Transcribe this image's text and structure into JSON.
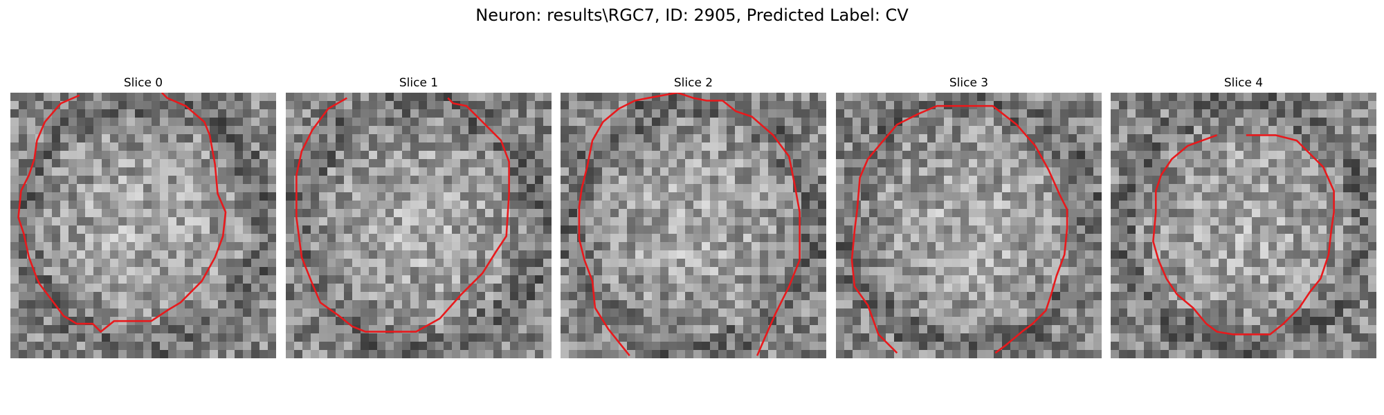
{
  "figure": {
    "title": "Neuron: results\\RGC7, ID: 2905, Predicted Label: CV"
  },
  "contour_color": "#e8191c",
  "panels": [
    {
      "label": "Slice 0",
      "seed": 11,
      "contour": [
        [
          0.26,
          0.01
        ],
        [
          0.19,
          0.04
        ],
        [
          0.13,
          0.11
        ],
        [
          0.1,
          0.18
        ],
        [
          0.09,
          0.25
        ],
        [
          0.07,
          0.31
        ],
        [
          0.04,
          0.37
        ],
        [
          0.03,
          0.47
        ],
        [
          0.05,
          0.53
        ],
        [
          0.07,
          0.62
        ],
        [
          0.1,
          0.7
        ],
        [
          0.11,
          0.72
        ],
        [
          0.17,
          0.8
        ],
        [
          0.2,
          0.84
        ],
        [
          0.25,
          0.87
        ],
        [
          0.31,
          0.87
        ],
        [
          0.34,
          0.9
        ],
        [
          0.39,
          0.86
        ],
        [
          0.53,
          0.86
        ],
        [
          0.59,
          0.82
        ],
        [
          0.64,
          0.79
        ],
        [
          0.72,
          0.71
        ],
        [
          0.77,
          0.62
        ],
        [
          0.8,
          0.54
        ],
        [
          0.81,
          0.45
        ],
        [
          0.78,
          0.38
        ],
        [
          0.77,
          0.27
        ],
        [
          0.75,
          0.16
        ],
        [
          0.73,
          0.11
        ],
        [
          0.66,
          0.05
        ],
        [
          0.59,
          0.02
        ],
        [
          0.57,
          0.0
        ]
      ]
    },
    {
      "label": "Slice 1",
      "seed": 23,
      "contour": [
        [
          0.23,
          0.02
        ],
        [
          0.16,
          0.06
        ],
        [
          0.1,
          0.14
        ],
        [
          0.06,
          0.22
        ],
        [
          0.04,
          0.31
        ],
        [
          0.04,
          0.47
        ],
        [
          0.06,
          0.62
        ],
        [
          0.1,
          0.72
        ],
        [
          0.13,
          0.79
        ],
        [
          0.2,
          0.84
        ],
        [
          0.25,
          0.88
        ],
        [
          0.3,
          0.9
        ],
        [
          0.49,
          0.9
        ],
        [
          0.58,
          0.85
        ],
        [
          0.66,
          0.76
        ],
        [
          0.74,
          0.68
        ],
        [
          0.79,
          0.6
        ],
        [
          0.83,
          0.54
        ],
        [
          0.84,
          0.38
        ],
        [
          0.84,
          0.26
        ],
        [
          0.81,
          0.18
        ],
        [
          0.74,
          0.11
        ],
        [
          0.68,
          0.05
        ],
        [
          0.63,
          0.04
        ],
        [
          0.61,
          0.02
        ]
      ]
    },
    {
      "label": "Slice 2",
      "seed": 37,
      "contour": [
        [
          0.26,
          0.99
        ],
        [
          0.18,
          0.89
        ],
        [
          0.13,
          0.81
        ],
        [
          0.12,
          0.71
        ],
        [
          0.09,
          0.63
        ],
        [
          0.07,
          0.55
        ],
        [
          0.07,
          0.43
        ],
        [
          0.08,
          0.36
        ],
        [
          0.1,
          0.28
        ],
        [
          0.12,
          0.18
        ],
        [
          0.16,
          0.11
        ],
        [
          0.22,
          0.06
        ],
        [
          0.28,
          0.03
        ],
        [
          0.33,
          0.02
        ],
        [
          0.44,
          0.0
        ],
        [
          0.5,
          0.02
        ],
        [
          0.55,
          0.03
        ],
        [
          0.61,
          0.03
        ],
        [
          0.66,
          0.07
        ],
        [
          0.72,
          0.09
        ],
        [
          0.8,
          0.16
        ],
        [
          0.86,
          0.24
        ],
        [
          0.88,
          0.34
        ],
        [
          0.9,
          0.45
        ],
        [
          0.9,
          0.63
        ],
        [
          0.86,
          0.73
        ],
        [
          0.81,
          0.83
        ],
        [
          0.77,
          0.92
        ],
        [
          0.74,
          0.99
        ]
      ]
    },
    {
      "label": "Slice 3",
      "seed": 51,
      "contour": [
        [
          0.23,
          0.98
        ],
        [
          0.16,
          0.91
        ],
        [
          0.12,
          0.8
        ],
        [
          0.07,
          0.73
        ],
        [
          0.06,
          0.63
        ],
        [
          0.07,
          0.52
        ],
        [
          0.08,
          0.44
        ],
        [
          0.09,
          0.32
        ],
        [
          0.12,
          0.25
        ],
        [
          0.17,
          0.19
        ],
        [
          0.23,
          0.12
        ],
        [
          0.31,
          0.08
        ],
        [
          0.38,
          0.05
        ],
        [
          0.49,
          0.05
        ],
        [
          0.59,
          0.05
        ],
        [
          0.68,
          0.12
        ],
        [
          0.75,
          0.2
        ],
        [
          0.8,
          0.29
        ],
        [
          0.84,
          0.38
        ],
        [
          0.87,
          0.44
        ],
        [
          0.87,
          0.51
        ],
        [
          0.86,
          0.61
        ],
        [
          0.83,
          0.69
        ],
        [
          0.81,
          0.76
        ],
        [
          0.79,
          0.82
        ],
        [
          0.74,
          0.87
        ],
        [
          0.7,
          0.9
        ],
        [
          0.64,
          0.95
        ],
        [
          0.6,
          0.98
        ]
      ]
    },
    {
      "label": "Slice 4",
      "seed": 67,
      "contour": [
        [
          0.4,
          0.16
        ],
        [
          0.29,
          0.2
        ],
        [
          0.23,
          0.25
        ],
        [
          0.19,
          0.31
        ],
        [
          0.17,
          0.37
        ],
        [
          0.17,
          0.45
        ],
        [
          0.16,
          0.56
        ],
        [
          0.18,
          0.63
        ],
        [
          0.21,
          0.7
        ],
        [
          0.25,
          0.76
        ],
        [
          0.31,
          0.81
        ],
        [
          0.36,
          0.87
        ],
        [
          0.4,
          0.9
        ],
        [
          0.46,
          0.91
        ],
        [
          0.6,
          0.91
        ],
        [
          0.65,
          0.87
        ],
        [
          0.71,
          0.81
        ],
        [
          0.75,
          0.75
        ],
        [
          0.79,
          0.7
        ],
        [
          0.82,
          0.61
        ],
        [
          0.83,
          0.52
        ],
        [
          0.84,
          0.45
        ],
        [
          0.84,
          0.37
        ],
        [
          0.8,
          0.28
        ],
        [
          0.74,
          0.22
        ],
        [
          0.7,
          0.18
        ],
        [
          0.62,
          0.16
        ],
        [
          0.51,
          0.16
        ]
      ]
    }
  ]
}
